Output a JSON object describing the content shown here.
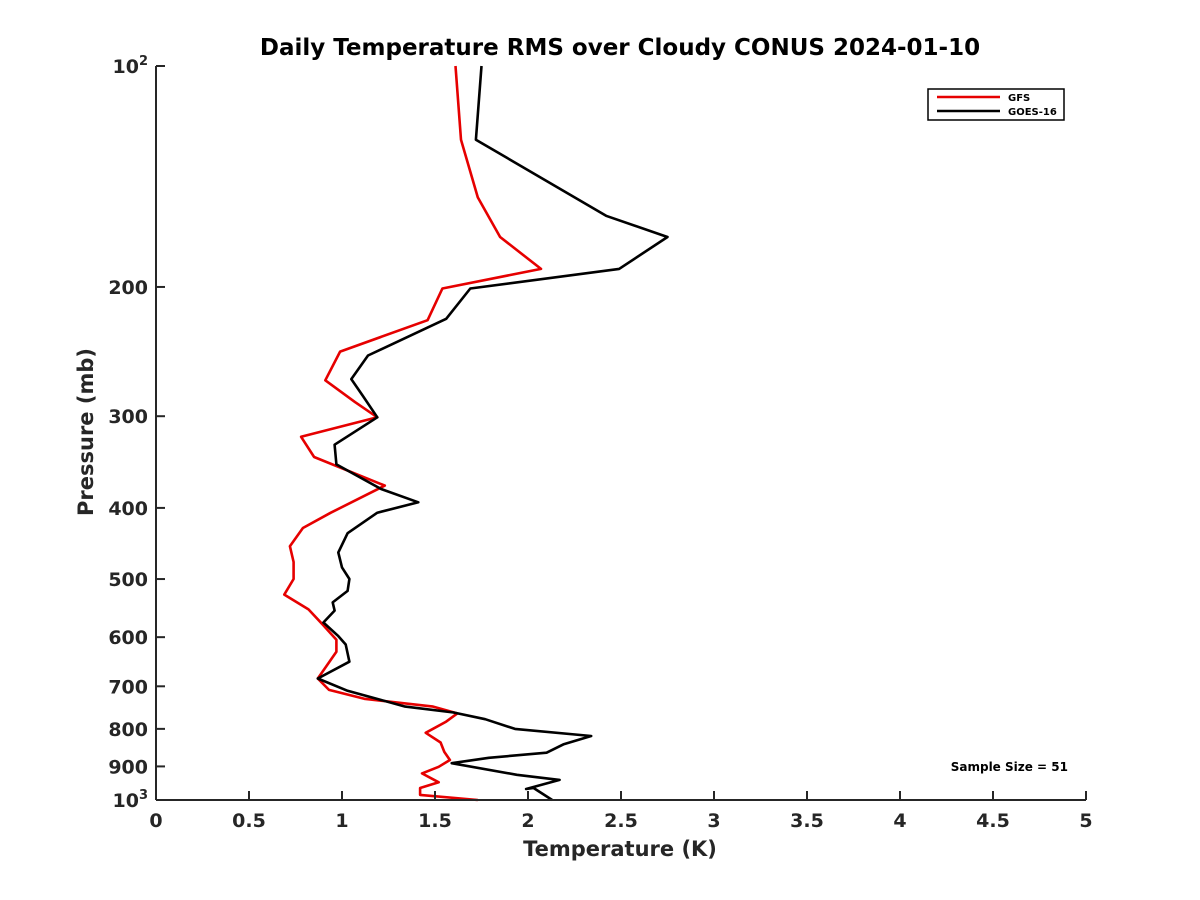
{
  "chart_data": {
    "type": "line",
    "title": "Daily Temperature RMS over Cloudy CONUS 2024-01-10",
    "xlabel": "Temperature (K)",
    "ylabel": "Pressure (mb)",
    "xlim": [
      0,
      5
    ],
    "ylim": [
      100,
      1000
    ],
    "yscale": "log",
    "y_reversed": true,
    "x_ticks": [
      0,
      0.5,
      1,
      1.5,
      2,
      2.5,
      3,
      3.5,
      4,
      4.5,
      5
    ],
    "x_tick_labels": [
      "0",
      "0.5",
      "1",
      "1.5",
      "2",
      "2.5",
      "3",
      "3.5",
      "4",
      "4.5",
      "5"
    ],
    "y_ticks": [
      100,
      200,
      300,
      400,
      500,
      600,
      700,
      800,
      900,
      1000
    ],
    "y_tick_labels": [
      {
        "base": "10",
        "exp": "2"
      },
      {
        "base": "200",
        "exp": ""
      },
      {
        "base": "300",
        "exp": ""
      },
      {
        "base": "400",
        "exp": ""
      },
      {
        "base": "500",
        "exp": ""
      },
      {
        "base": "600",
        "exp": ""
      },
      {
        "base": "700",
        "exp": ""
      },
      {
        "base": "800",
        "exp": ""
      },
      {
        "base": "900",
        "exp": ""
      },
      {
        "base": "10",
        "exp": "3"
      }
    ],
    "legend_position": "top-right",
    "annotation": "Sample Size = 51",
    "series": [
      {
        "name": "GFS",
        "color": "#e60000",
        "points": [
          [
            1.61,
            100
          ],
          [
            1.64,
            126
          ],
          [
            1.73,
            151
          ],
          [
            1.85,
            171
          ],
          [
            2.07,
            189
          ],
          [
            1.54,
            201
          ],
          [
            1.46,
            222
          ],
          [
            0.99,
            245
          ],
          [
            0.91,
            268
          ],
          [
            1.07,
            287
          ],
          [
            1.19,
            301
          ],
          [
            0.78,
            320
          ],
          [
            0.85,
            341
          ],
          [
            1.23,
            373
          ],
          [
            0.94,
            406
          ],
          [
            0.79,
            426
          ],
          [
            0.72,
            451
          ],
          [
            0.74,
            474
          ],
          [
            0.74,
            500
          ],
          [
            0.69,
            525
          ],
          [
            0.82,
            550
          ],
          [
            0.9,
            578
          ],
          [
            0.97,
            605
          ],
          [
            0.97,
            628
          ],
          [
            0.92,
            655
          ],
          [
            0.87,
            683
          ],
          [
            0.93,
            708
          ],
          [
            1.12,
            728
          ],
          [
            1.49,
            746
          ],
          [
            1.62,
            762
          ],
          [
            1.56,
            782
          ],
          [
            1.45,
            810
          ],
          [
            1.53,
            835
          ],
          [
            1.55,
            860
          ],
          [
            1.58,
            882
          ],
          [
            1.52,
            901
          ],
          [
            1.43,
            920
          ],
          [
            1.52,
            946
          ],
          [
            1.42,
            963
          ],
          [
            1.42,
            984
          ],
          [
            1.73,
            1000
          ]
        ]
      },
      {
        "name": "GOES-16",
        "color": "#000000",
        "points": [
          [
            1.75,
            100
          ],
          [
            1.72,
            126
          ],
          [
            2.42,
            160
          ],
          [
            2.75,
            171
          ],
          [
            2.49,
            189
          ],
          [
            1.69,
            201
          ],
          [
            1.56,
            221
          ],
          [
            1.14,
            248
          ],
          [
            1.05,
            267
          ],
          [
            1.11,
            281
          ],
          [
            1.19,
            301
          ],
          [
            0.96,
            328
          ],
          [
            0.97,
            349
          ],
          [
            1.21,
            377
          ],
          [
            1.41,
            393
          ],
          [
            1.19,
            406
          ],
          [
            1.03,
            433
          ],
          [
            0.98,
            460
          ],
          [
            1.0,
            482
          ],
          [
            1.04,
            500
          ],
          [
            1.03,
            519
          ],
          [
            0.95,
            538
          ],
          [
            0.96,
            552
          ],
          [
            0.9,
            573
          ],
          [
            0.98,
            598
          ],
          [
            1.02,
            614
          ],
          [
            1.04,
            648
          ],
          [
            0.87,
            683
          ],
          [
            1.03,
            710
          ],
          [
            1.34,
            746
          ],
          [
            1.6,
            760
          ],
          [
            1.77,
            776
          ],
          [
            1.93,
            800
          ],
          [
            2.34,
            818
          ],
          [
            2.19,
            840
          ],
          [
            2.1,
            862
          ],
          [
            1.79,
            876
          ],
          [
            1.59,
            891
          ],
          [
            1.94,
            924
          ],
          [
            2.17,
            939
          ],
          [
            1.99,
            966
          ],
          [
            2.03,
            963
          ],
          [
            2.13,
            1000
          ]
        ]
      }
    ]
  }
}
